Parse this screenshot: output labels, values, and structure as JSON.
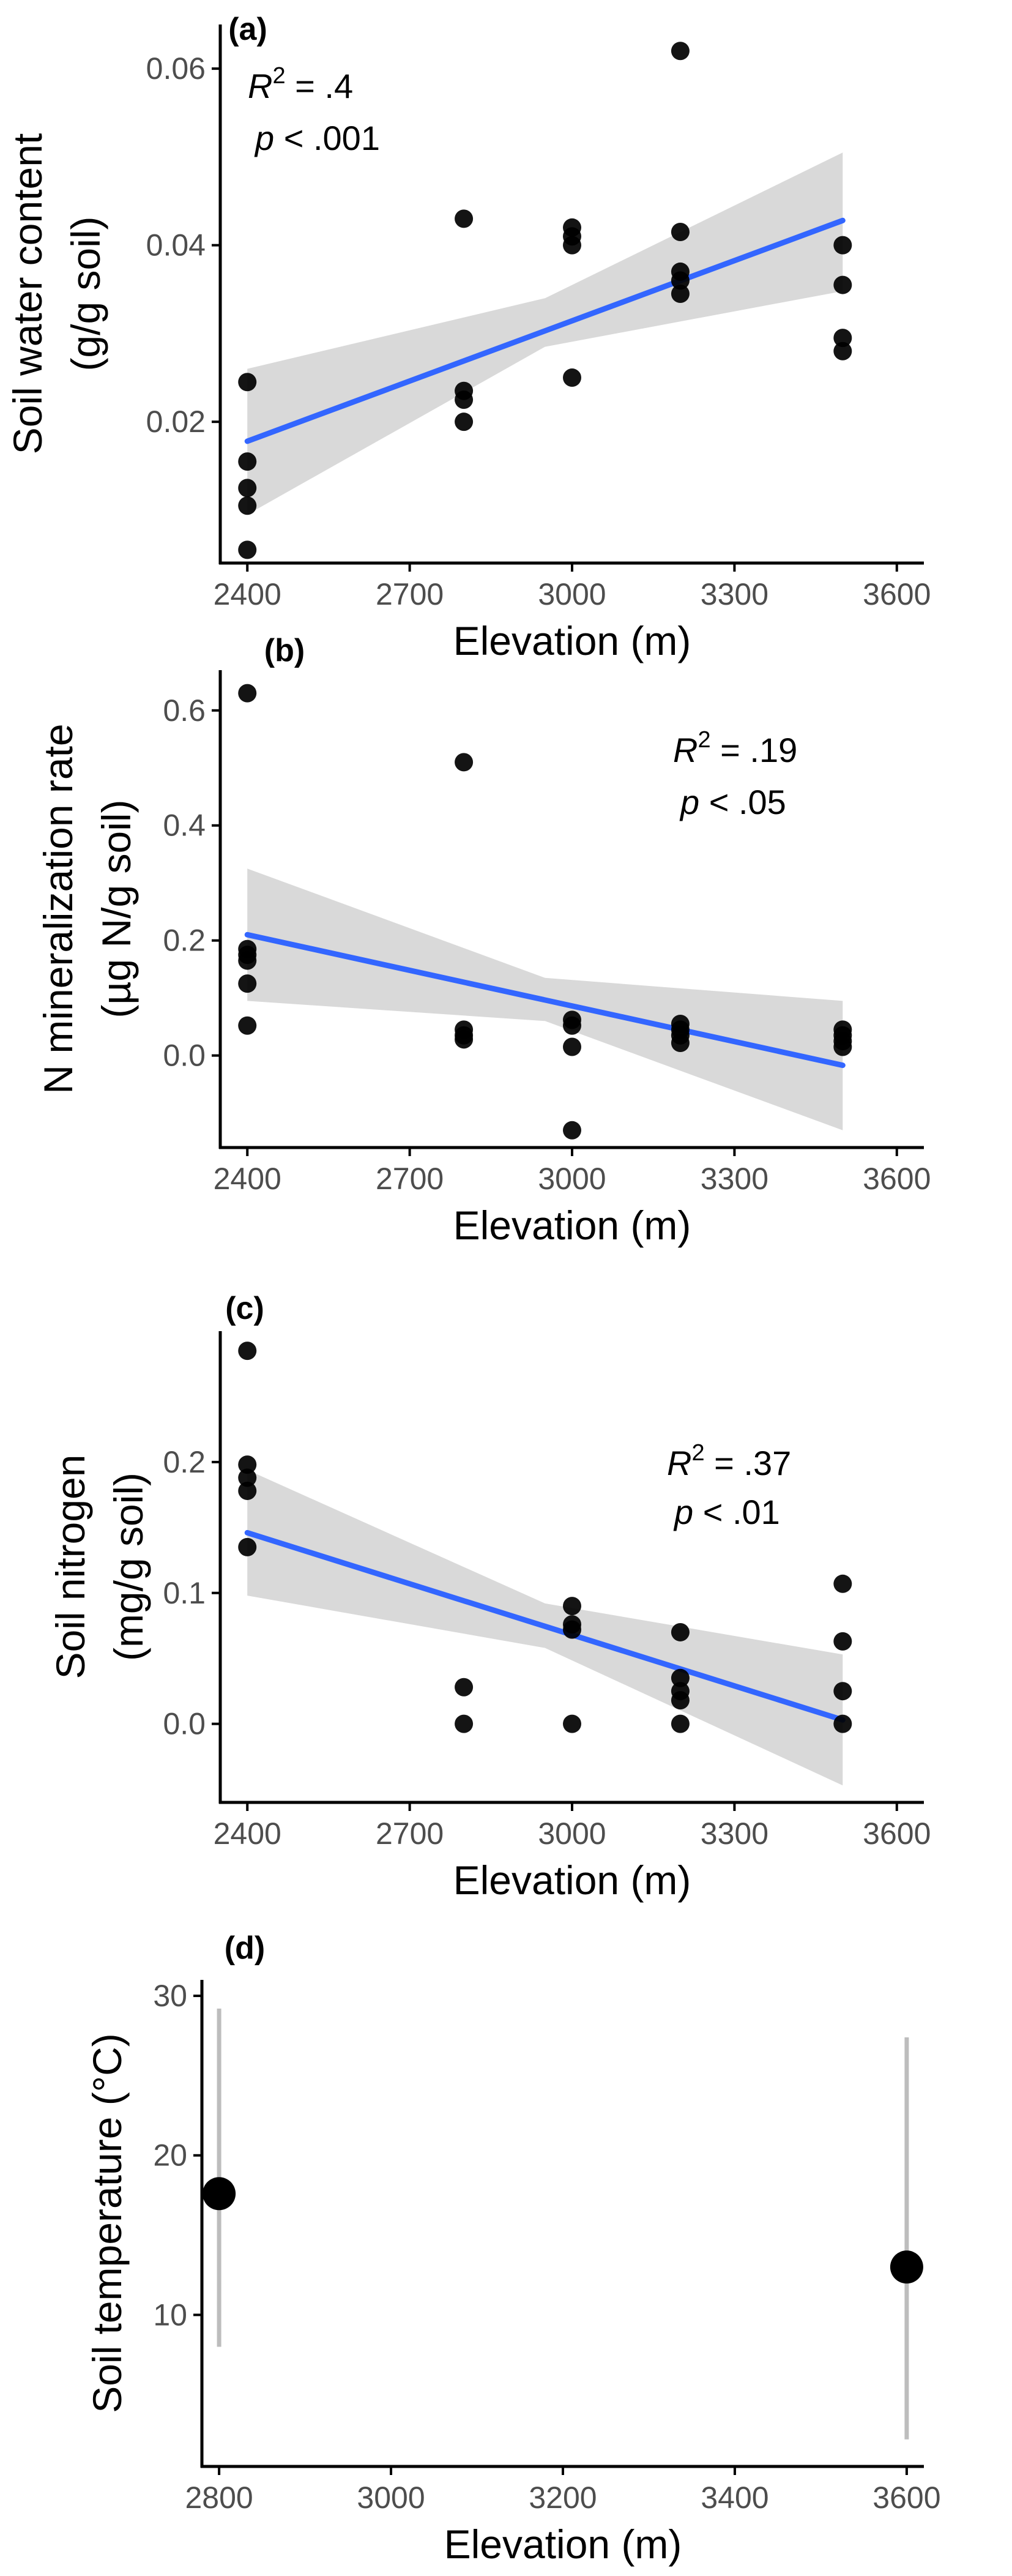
{
  "chart_data": [
    {
      "panel": "(a)",
      "type": "scatter",
      "xlabel": "Elevation (m)",
      "ylabel": [
        "Soil water content",
        "(g/g soil)"
      ],
      "xlim": [
        2350,
        3650
      ],
      "ylim": [
        0.004,
        0.065
      ],
      "xticks": [
        2400,
        2700,
        3000,
        3300,
        3600
      ],
      "yticks": [
        0.02,
        0.04,
        0.06
      ],
      "ytick_labels": [
        "0.02",
        "0.04",
        "0.06"
      ],
      "points": [
        [
          2400,
          0.0245
        ],
        [
          2400,
          0.0155
        ],
        [
          2400,
          0.0125
        ],
        [
          2400,
          0.0105
        ],
        [
          2400,
          0.0055
        ],
        [
          2800,
          0.043
        ],
        [
          2800,
          0.0235
        ],
        [
          2800,
          0.0225
        ],
        [
          2800,
          0.02
        ],
        [
          3000,
          0.042
        ],
        [
          3000,
          0.041
        ],
        [
          3000,
          0.04
        ],
        [
          3000,
          0.025
        ],
        [
          3200,
          0.062
        ],
        [
          3200,
          0.0415
        ],
        [
          3200,
          0.037
        ],
        [
          3200,
          0.036
        ],
        [
          3200,
          0.0345
        ],
        [
          3500,
          0.04
        ],
        [
          3500,
          0.0355
        ],
        [
          3500,
          0.0295
        ],
        [
          3500,
          0.028
        ]
      ],
      "fit": {
        "x": [
          2400,
          3500
        ],
        "y": [
          0.0178,
          0.0428
        ]
      },
      "ci_band": {
        "x": [
          2400,
          2950,
          3500
        ],
        "lower": [
          0.0095,
          0.0285,
          0.0348
        ],
        "upper": [
          0.026,
          0.034,
          0.0505
        ]
      },
      "stats": {
        "r2_prefix": "R",
        "r2_sup": "2",
        "r2_value": " = .4",
        "p_prefix": "p",
        "p_value": " < .001"
      },
      "stats_position": "top-left"
    },
    {
      "panel": "(b)",
      "type": "scatter",
      "xlabel": "Elevation (m)",
      "ylabel": [
        "N mineralization rate",
        "(µg N/g soil)"
      ],
      "xlim": [
        2350,
        3650
      ],
      "ylim": [
        -0.16,
        0.67
      ],
      "xticks": [
        2400,
        2700,
        3000,
        3300,
        3600
      ],
      "yticks": [
        0.0,
        0.2,
        0.4,
        0.6
      ],
      "ytick_labels": [
        "0.0",
        "0.2",
        "0.4",
        "0.6"
      ],
      "points": [
        [
          2400,
          0.63
        ],
        [
          2400,
          0.185
        ],
        [
          2400,
          0.175
        ],
        [
          2400,
          0.165
        ],
        [
          2400,
          0.125
        ],
        [
          2400,
          0.052
        ],
        [
          2800,
          0.51
        ],
        [
          2800,
          0.045
        ],
        [
          2800,
          0.035
        ],
        [
          2800,
          0.028
        ],
        [
          3000,
          0.062
        ],
        [
          3000,
          0.052
        ],
        [
          3000,
          0.015
        ],
        [
          3000,
          -0.13
        ],
        [
          3200,
          0.055
        ],
        [
          3200,
          0.045
        ],
        [
          3200,
          0.035
        ],
        [
          3200,
          0.022
        ],
        [
          3500,
          0.045
        ],
        [
          3500,
          0.035
        ],
        [
          3500,
          0.025
        ],
        [
          3500,
          0.015
        ]
      ],
      "fit": {
        "x": [
          2400,
          3500
        ],
        "y": [
          0.21,
          -0.017
        ]
      },
      "ci_band": {
        "x": [
          2400,
          2950,
          3500
        ],
        "lower": [
          0.095,
          0.06,
          -0.13
        ],
        "upper": [
          0.325,
          0.135,
          0.095
        ]
      },
      "stats": {
        "r2_prefix": "R",
        "r2_sup": "2",
        "r2_value": " = .19",
        "p_prefix": "p",
        "p_value": " < .05"
      },
      "stats_position": "top-right"
    },
    {
      "panel": "(c)",
      "type": "scatter",
      "xlabel": "Elevation (m)",
      "ylabel": [
        "Soil nitrogen",
        "(mg/g soil)"
      ],
      "xlim": [
        2350,
        3650
      ],
      "ylim": [
        -0.06,
        0.3
      ],
      "xticks": [
        2400,
        2700,
        3000,
        3300,
        3600
      ],
      "yticks": [
        0.0,
        0.1,
        0.2
      ],
      "ytick_labels": [
        "0.0",
        "0.1",
        "0.2"
      ],
      "points": [
        [
          2400,
          0.285
        ],
        [
          2400,
          0.198
        ],
        [
          2400,
          0.188
        ],
        [
          2400,
          0.178
        ],
        [
          2400,
          0.135
        ],
        [
          2800,
          0.028
        ],
        [
          2800,
          0.0
        ],
        [
          3000,
          0.09
        ],
        [
          3000,
          0.076
        ],
        [
          3000,
          0.072
        ],
        [
          3000,
          0.0
        ],
        [
          3200,
          0.07
        ],
        [
          3200,
          0.035
        ],
        [
          3200,
          0.025
        ],
        [
          3200,
          0.018
        ],
        [
          3200,
          0.0
        ],
        [
          3500,
          0.107
        ],
        [
          3500,
          0.063
        ],
        [
          3500,
          0.025
        ],
        [
          3500,
          0.0
        ]
      ],
      "fit": {
        "x": [
          2400,
          3500
        ],
        "y": [
          0.146,
          0.003
        ]
      },
      "ci_band": {
        "x": [
          2400,
          2950,
          3500
        ],
        "lower": [
          0.098,
          0.058,
          -0.047
        ],
        "upper": [
          0.194,
          0.092,
          0.053
        ]
      },
      "stats": {
        "r2_prefix": "R",
        "r2_sup": "2",
        "r2_value": " = .37",
        "p_prefix": "p",
        "p_value": " < .01"
      },
      "stats_position": "top-right"
    },
    {
      "panel": "(d)",
      "type": "scatter",
      "xlabel": "Elevation (m)",
      "ylabel": [
        "Soil temperature (°C)"
      ],
      "xlim": [
        2780,
        3620
      ],
      "ylim": [
        0.5,
        31
      ],
      "xticks": [
        2800,
        3000,
        3200,
        3400,
        3600
      ],
      "yticks": [
        10,
        20,
        30
      ],
      "ytick_labels": [
        "10",
        "20",
        "30"
      ],
      "points_with_range": [
        {
          "x": 2800,
          "y": 17.6,
          "low": 8.0,
          "high": 29.2
        },
        {
          "x": 3600,
          "y": 13.0,
          "low": 2.2,
          "high": 27.4
        }
      ]
    }
  ],
  "colors": {
    "point": "#000000",
    "fit_line": "#3366ff",
    "ci_band": "#d9d9d9",
    "range_line": "#bdbdbd"
  }
}
